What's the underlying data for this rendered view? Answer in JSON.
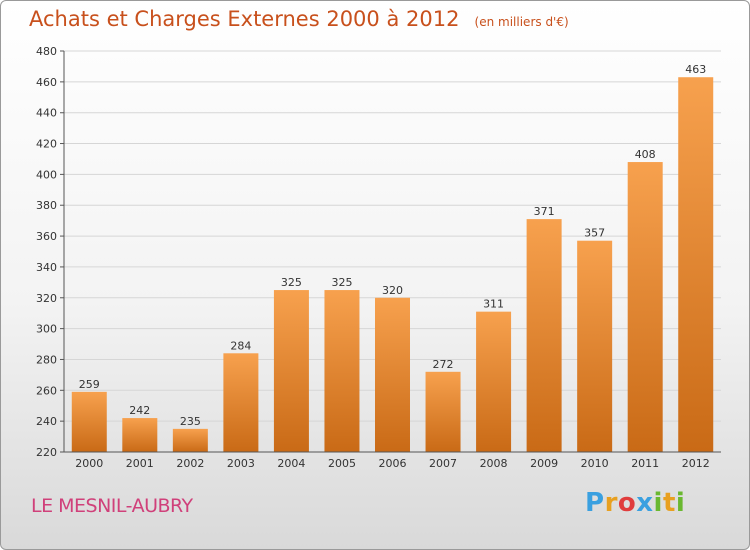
{
  "title": "Achats et Charges Externes 2000 à 2012",
  "unit_note": "(en milliers d'€)",
  "commune": "LE MESNIL-AUBRY",
  "logo": {
    "letters": [
      "P",
      "r",
      "o",
      "x",
      "i",
      "t",
      "i"
    ],
    "colors": [
      "#3aa0e0",
      "#e8a020",
      "#e03c3c",
      "#3aa0e0",
      "#6ab830",
      "#e8a020",
      "#6ab830"
    ]
  },
  "colors": {
    "bar_top": "#f7a14e",
    "bar_bottom": "#c96a16",
    "title": "#c8501c",
    "commune": "#d0407a"
  },
  "chart_data": {
    "type": "bar",
    "title": "Achats et Charges Externes 2000 à 2012",
    "subtitle": "(en milliers d'€)",
    "categories": [
      "2000",
      "2001",
      "2002",
      "2003",
      "2004",
      "2005",
      "2006",
      "2007",
      "2008",
      "2009",
      "2010",
      "2011",
      "2012"
    ],
    "values": [
      259,
      242,
      235,
      284,
      325,
      325,
      320,
      272,
      311,
      371,
      357,
      408,
      463
    ],
    "ylim": [
      220,
      480
    ],
    "yticks": [
      220,
      240,
      260,
      280,
      300,
      320,
      340,
      360,
      380,
      400,
      420,
      440,
      460,
      480
    ],
    "xlabel": "",
    "ylabel": "",
    "grid": true,
    "legend": "none"
  }
}
